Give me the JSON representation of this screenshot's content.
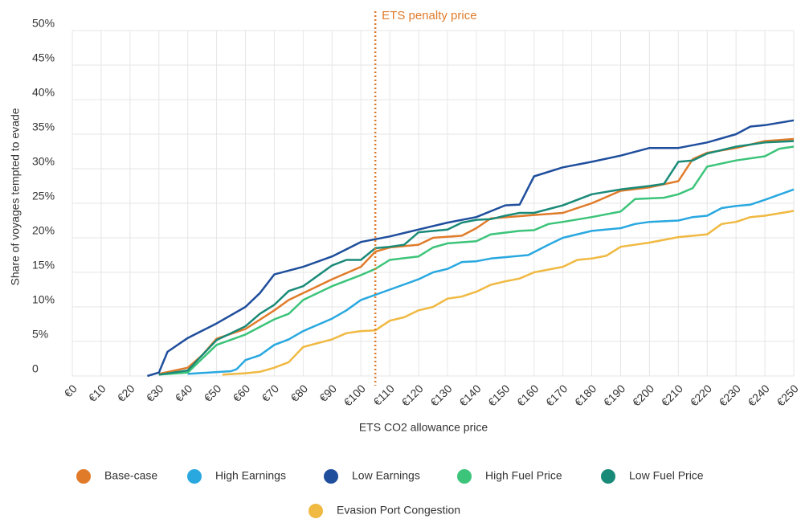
{
  "chart_data": {
    "type": "line",
    "x_label": "ETS CO2 allowance price",
    "y_label": "Share of voyages tempted to evade",
    "annotation": {
      "text": "ETS penalty price",
      "x": 105,
      "color": "#e07b2a"
    },
    "xlim": [
      0,
      250
    ],
    "ylim": [
      0,
      50
    ],
    "xticks": [
      {
        "value": 0,
        "label": "€0"
      },
      {
        "value": 10,
        "label": "€10"
      },
      {
        "value": 20,
        "label": "€20"
      },
      {
        "value": 30,
        "label": "€30"
      },
      {
        "value": 40,
        "label": "€40"
      },
      {
        "value": 50,
        "label": "€50"
      },
      {
        "value": 60,
        "label": "€60"
      },
      {
        "value": 70,
        "label": "€70"
      },
      {
        "value": 80,
        "label": "€80"
      },
      {
        "value": 90,
        "label": "€90"
      },
      {
        "value": 100,
        "label": "€100"
      },
      {
        "value": 110,
        "label": "€110"
      },
      {
        "value": 120,
        "label": "€120"
      },
      {
        "value": 130,
        "label": "€130"
      },
      {
        "value": 140,
        "label": "€140"
      },
      {
        "value": 150,
        "label": "€150"
      },
      {
        "value": 160,
        "label": "€160"
      },
      {
        "value": 170,
        "label": "€170"
      },
      {
        "value": 180,
        "label": "€180"
      },
      {
        "value": 190,
        "label": "€190"
      },
      {
        "value": 200,
        "label": "€200"
      },
      {
        "value": 210,
        "label": "€210"
      },
      {
        "value": 220,
        "label": "€220"
      },
      {
        "value": 230,
        "label": "€230"
      },
      {
        "value": 240,
        "label": "€240"
      },
      {
        "value": 250,
        "label": "€250"
      }
    ],
    "yticks": [
      0,
      {
        "value": 5,
        "label": "5%"
      },
      {
        "value": 10,
        "label": "10%"
      },
      {
        "value": 15,
        "label": "15%"
      },
      {
        "value": 20,
        "label": "20%"
      },
      {
        "value": 25,
        "label": "25%"
      },
      {
        "value": 30,
        "label": "30%"
      },
      {
        "value": 35,
        "label": "35%"
      },
      {
        "value": 40,
        "label": "40%"
      },
      {
        "value": 45,
        "label": "45%"
      },
      {
        "value": 50,
        "label": "50%"
      }
    ],
    "grid": true,
    "series": [
      {
        "name": "Base-case",
        "color": "#e07b2a",
        "x": [
          30,
          40,
          45,
          50,
          60,
          70,
          75,
          80,
          90,
          100,
          105,
          110,
          120,
          125,
          135,
          140,
          145,
          160,
          170,
          180,
          190,
          200,
          210,
          215,
          220,
          230,
          240,
          250
        ],
        "values": [
          0.3,
          1.2,
          3,
          5.4,
          6.8,
          9.5,
          11,
          12,
          14,
          15.8,
          18,
          18.6,
          19,
          20,
          20.3,
          21.4,
          22.8,
          23.3,
          23.6,
          25,
          26.8,
          27.3,
          28.2,
          31.4,
          32.3,
          33,
          34,
          34.3
        ]
      },
      {
        "name": "High Earnings",
        "color": "#29a8e0",
        "x": [
          40,
          55,
          57,
          60,
          65,
          70,
          75,
          80,
          90,
          95,
          100,
          110,
          120,
          125,
          130,
          135,
          140,
          145,
          150,
          158,
          165,
          170,
          180,
          190,
          195,
          200,
          210,
          215,
          220,
          225,
          230,
          235,
          240,
          250
        ],
        "values": [
          0.3,
          0.7,
          1,
          2.3,
          3,
          4.5,
          5.3,
          6.5,
          8.3,
          9.5,
          11,
          12.5,
          14,
          15,
          15.5,
          16.5,
          16.6,
          17,
          17.2,
          17.5,
          19,
          20,
          21,
          21.4,
          22,
          22.3,
          22.5,
          23,
          23.2,
          24.3,
          24.6,
          24.8,
          25.5,
          27
        ]
      },
      {
        "name": "Low Earnings",
        "color": "#1f4e9c",
        "x": [
          26,
          30,
          33,
          40,
          50,
          60,
          65,
          70,
          80,
          90,
          100,
          110,
          120,
          130,
          140,
          150,
          155,
          160,
          170,
          180,
          190,
          200,
          210,
          220,
          230,
          235,
          240,
          250
        ],
        "values": [
          0,
          0.5,
          3.5,
          5.5,
          7.6,
          10,
          12,
          14.7,
          15.8,
          17.3,
          19.4,
          20.2,
          21.2,
          22.2,
          23,
          24.7,
          24.8,
          28.9,
          30.2,
          31,
          31.9,
          33,
          33,
          33.8,
          35,
          36.1,
          36.3,
          37
        ]
      },
      {
        "name": "High Fuel Price",
        "color": "#3cc47a",
        "x": [
          30,
          40,
          45,
          50,
          60,
          70,
          75,
          80,
          90,
          100,
          105,
          110,
          120,
          125,
          130,
          140,
          145,
          155,
          160,
          165,
          170,
          180,
          190,
          195,
          205,
          210,
          215,
          220,
          230,
          240,
          245,
          250
        ],
        "values": [
          0.2,
          0.5,
          2.5,
          4.5,
          6,
          8.2,
          9,
          11,
          13,
          14.6,
          15.5,
          16.8,
          17.3,
          18.6,
          19.2,
          19.5,
          20.5,
          21,
          21.1,
          22,
          22.3,
          23,
          23.8,
          25.6,
          25.8,
          26.3,
          27.2,
          30.3,
          31.2,
          31.8,
          32.9,
          33.2
        ]
      },
      {
        "name": "Low Fuel Price",
        "color": "#1a8a78",
        "x": [
          30,
          40,
          45,
          50,
          55,
          60,
          65,
          70,
          75,
          80,
          85,
          90,
          95,
          100,
          105,
          110,
          115,
          120,
          130,
          135,
          140,
          145,
          150,
          155,
          160,
          170,
          180,
          190,
          200,
          205,
          210,
          215,
          220,
          230,
          240,
          250
        ],
        "values": [
          0.2,
          0.8,
          3,
          5.2,
          6.2,
          7.2,
          9,
          10.3,
          12.3,
          13,
          14.5,
          16,
          16.8,
          16.8,
          18.5,
          18.7,
          19,
          20.8,
          21.2,
          22.2,
          22.6,
          22.7,
          23.2,
          23.6,
          23.6,
          24.7,
          26.3,
          27,
          27.5,
          27.8,
          31,
          31.2,
          32.2,
          33.2,
          33.8,
          34
        ]
      },
      {
        "name": "Evasion Port Congestion",
        "color": "#f0b942",
        "x": [
          52,
          60,
          65,
          70,
          75,
          80,
          90,
          95,
          100,
          105,
          110,
          115,
          120,
          125,
          130,
          135,
          140,
          145,
          150,
          155,
          160,
          170,
          175,
          180,
          185,
          190,
          200,
          210,
          220,
          225,
          230,
          235,
          240,
          250
        ],
        "values": [
          0.2,
          0.4,
          0.6,
          1.2,
          2,
          4.2,
          5.3,
          6.2,
          6.5,
          6.6,
          8,
          8.5,
          9.5,
          10,
          11.2,
          11.5,
          12.2,
          13.2,
          13.7,
          14.1,
          15,
          15.8,
          16.8,
          17,
          17.4,
          18.7,
          19.3,
          20.1,
          20.5,
          22,
          22.3,
          23,
          23.2,
          23.9
        ]
      }
    ]
  }
}
